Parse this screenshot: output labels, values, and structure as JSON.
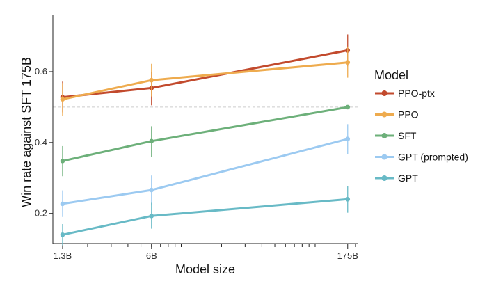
{
  "chart_data": {
    "type": "line",
    "xlabel": "Model size",
    "ylabel": "Win rate against SFT 175B",
    "x_scale": "log",
    "x_values": [
      1.3,
      6,
      175
    ],
    "x_tick_labels": [
      "1.3B",
      "6B",
      "175B"
    ],
    "xlim": [
      1.1,
      210
    ],
    "ylim": [
      0.115,
      0.755
    ],
    "y_ticks": [
      0.2,
      0.4,
      0.6
    ],
    "y_tick_labels": [
      "0.2",
      "0.4",
      "0.6"
    ],
    "reference_line": 0.5,
    "legend_title": "Model",
    "legend_position": "right",
    "series": [
      {
        "name": "PPO-ptx",
        "color": "#c24a2d",
        "values": [
          0.528,
          0.554,
          0.66
        ],
        "err_low": [
          0.485,
          0.505,
          0.615
        ],
        "err_high": [
          0.572,
          0.6,
          0.705
        ]
      },
      {
        "name": "PPO",
        "color": "#eeab4e",
        "values": [
          0.522,
          0.576,
          0.626
        ],
        "err_low": [
          0.475,
          0.53,
          0.583
        ],
        "err_high": [
          0.568,
          0.622,
          0.671
        ]
      },
      {
        "name": "SFT",
        "color": "#6db07a",
        "values": [
          0.348,
          0.404,
          0.5
        ],
        "err_low": [
          0.305,
          0.36,
          0.5
        ],
        "err_high": [
          0.39,
          0.446,
          0.5
        ]
      },
      {
        "name": "GPT (prompted)",
        "color": "#9ccaf1",
        "values": [
          0.227,
          0.266,
          0.41
        ],
        "err_low": [
          0.19,
          0.225,
          0.368
        ],
        "err_high": [
          0.265,
          0.307,
          0.452
        ]
      },
      {
        "name": "GPT",
        "color": "#68bac6",
        "values": [
          0.14,
          0.193,
          0.24
        ],
        "err_low": [
          0.11,
          0.157,
          0.202
        ],
        "err_high": [
          0.17,
          0.23,
          0.277
        ]
      }
    ]
  }
}
